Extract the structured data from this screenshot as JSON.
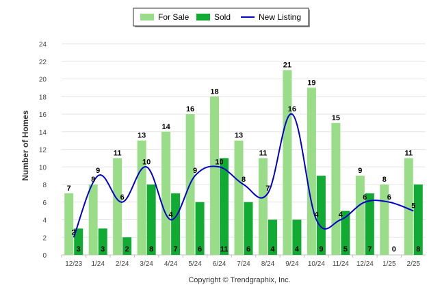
{
  "chart_data": {
    "type": "bar",
    "categories": [
      "12/23",
      "1/24",
      "2/24",
      "3/24",
      "4/24",
      "5/24",
      "6/24",
      "7/24",
      "8/24",
      "9/24",
      "10/24",
      "11/24",
      "12/24",
      "1/25",
      "2/25"
    ],
    "series": [
      {
        "name": "For Sale",
        "type": "bar",
        "color": "#99dd88",
        "values": [
          7,
          8,
          11,
          13,
          14,
          16,
          18,
          13,
          11,
          21,
          19,
          15,
          9,
          8,
          11
        ]
      },
      {
        "name": "Sold",
        "type": "bar",
        "color": "#11aa33",
        "values": [
          3,
          3,
          2,
          8,
          7,
          6,
          11,
          6,
          4,
          4,
          9,
          5,
          7,
          0,
          8
        ]
      },
      {
        "name": "New Listing",
        "type": "line",
        "color": "#0000cc",
        "values": [
          2,
          9,
          6,
          10,
          4,
          9,
          10,
          8,
          7,
          16,
          4,
          4,
          6,
          6,
          5
        ]
      }
    ],
    "ylabel": "Number of Homes",
    "xlabel": "",
    "ylim": [
      0,
      24
    ],
    "yticks": [
      0,
      2,
      4,
      6,
      8,
      10,
      12,
      14,
      16,
      18,
      20,
      22,
      24
    ],
    "grid": true,
    "legend_position": "top-center",
    "copyright": "Copyright © Trendgraphix, Inc."
  }
}
